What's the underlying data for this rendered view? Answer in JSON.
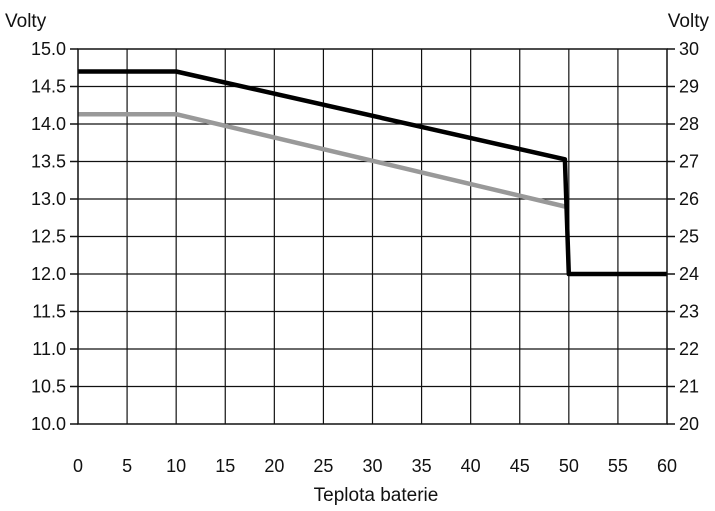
{
  "chart_data": {
    "type": "line",
    "title": "",
    "xlabel": "Teplota baterie",
    "ylabel_left": "Volty",
    "ylabel_right": "Volty",
    "xlim": [
      0,
      60
    ],
    "ylim": [
      10.0,
      15.0
    ],
    "ylim_right": [
      20,
      30
    ],
    "x_ticks": [
      "0",
      "5",
      "10",
      "15",
      "20",
      "25",
      "30",
      "35",
      "40",
      "45",
      "50",
      "55",
      "60"
    ],
    "y_ticks_left": [
      "15.0",
      "14.5",
      "14.0",
      "13.5",
      "13.0",
      "12.5",
      "12.0",
      "11.5",
      "11.0",
      "10.5",
      "10.0"
    ],
    "y_ticks_right": [
      "30",
      "29",
      "28",
      "27",
      "26",
      "25",
      "24",
      "23",
      "22",
      "21",
      "20"
    ],
    "grid": true,
    "series": [
      {
        "color": "#000000",
        "x": [
          0,
          10,
          49.6,
          50,
          60
        ],
        "y": [
          14.7,
          14.7,
          13.53,
          12.0,
          12.0
        ]
      },
      {
        "color": "#999999",
        "x": [
          0,
          10,
          49.6
        ],
        "y": [
          14.13,
          14.13,
          12.9
        ]
      }
    ]
  }
}
